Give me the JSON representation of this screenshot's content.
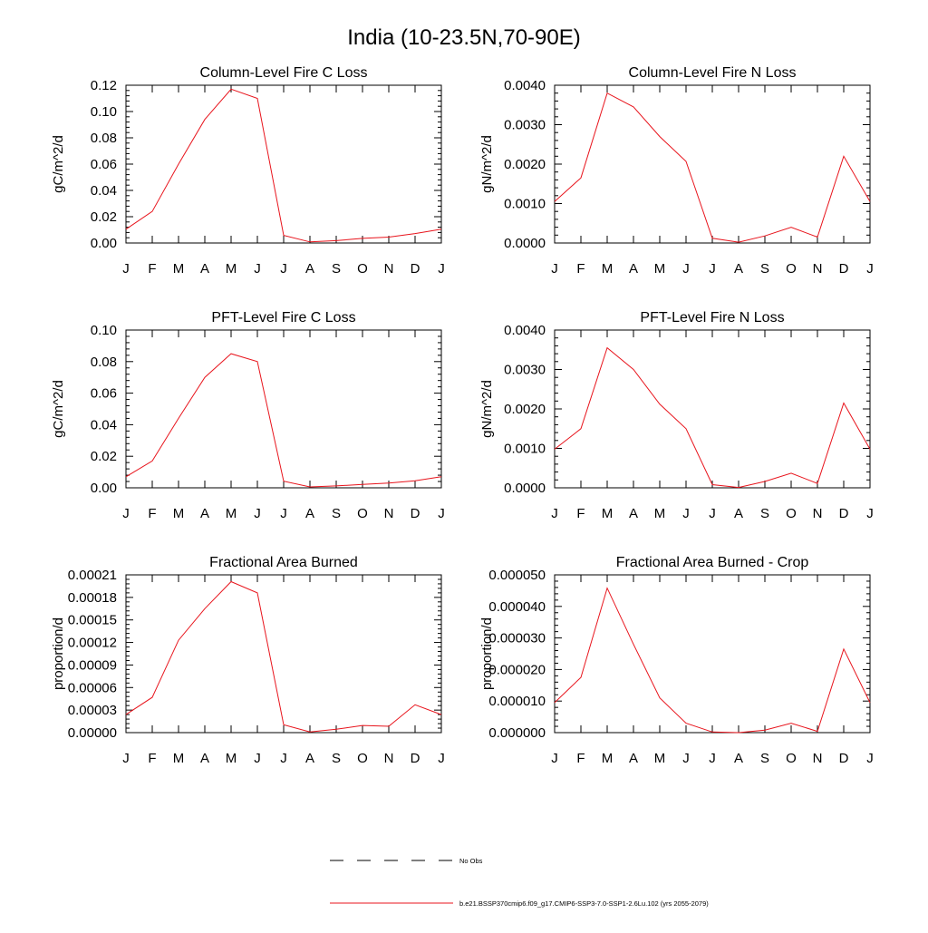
{
  "figure_title": "India (10-23.5N,70-90E)",
  "legend": {
    "entries": [
      {
        "label": "No Obs",
        "style": "dashed",
        "color": "#000000"
      },
      {
        "label": "b.e21.BSSP370cmip6.f09_g17.CMIP6-SSP3-7.0-SSP1-2.6Lu.102 (yrs 2055-2079)",
        "style": "solid",
        "color": "#e8141c"
      }
    ]
  },
  "chart_data": [
    {
      "type": "line",
      "title": "Column-Level Fire C Loss",
      "xlabel": "",
      "ylabel": "gC/m^2/d",
      "x": [
        "J",
        "F",
        "M",
        "A",
        "M",
        "J",
        "J",
        "A",
        "S",
        "O",
        "N",
        "D",
        "J"
      ],
      "ylim": [
        0,
        0.12
      ],
      "yticks": [
        "0.00",
        "0.02",
        "0.04",
        "0.06",
        "0.08",
        "0.10",
        "0.12"
      ],
      "series": [
        {
          "values": [
            0.0105,
            0.024,
            0.06,
            0.094,
            0.117,
            0.11,
            0.0058,
            0.0008,
            0.0018,
            0.0035,
            0.0045,
            0.0072,
            0.0105
          ]
        }
      ]
    },
    {
      "type": "line",
      "title": "Column-Level Fire N Loss",
      "xlabel": "",
      "ylabel": "gN/m^2/d",
      "x": [
        "J",
        "F",
        "M",
        "A",
        "M",
        "J",
        "J",
        "A",
        "S",
        "O",
        "N",
        "D",
        "J"
      ],
      "ylim": [
        0,
        0.004
      ],
      "yticks": [
        "0.0000",
        "0.0010",
        "0.0020",
        "0.0030",
        "0.0040"
      ],
      "series": [
        {
          "values": [
            0.00105,
            0.00165,
            0.0038,
            0.00345,
            0.0027,
            0.00207,
            0.00012,
            2e-05,
            0.00018,
            0.0004,
            0.00015,
            0.0022,
            0.00105
          ]
        }
      ]
    },
    {
      "type": "line",
      "title": "PFT-Level Fire C Loss",
      "xlabel": "",
      "ylabel": "gC/m^2/d",
      "x": [
        "J",
        "F",
        "M",
        "A",
        "M",
        "J",
        "J",
        "A",
        "S",
        "O",
        "N",
        "D",
        "J"
      ],
      "ylim": [
        0,
        0.1
      ],
      "yticks": [
        "0.00",
        "0.02",
        "0.04",
        "0.06",
        "0.08",
        "0.10"
      ],
      "series": [
        {
          "values": [
            0.007,
            0.017,
            0.044,
            0.07,
            0.085,
            0.08,
            0.0042,
            0.0006,
            0.0012,
            0.0022,
            0.003,
            0.0045,
            0.007
          ]
        }
      ]
    },
    {
      "type": "line",
      "title": "PFT-Level Fire N Loss",
      "xlabel": "",
      "ylabel": "gN/m^2/d",
      "x": [
        "J",
        "F",
        "M",
        "A",
        "M",
        "J",
        "J",
        "A",
        "S",
        "O",
        "N",
        "D",
        "J"
      ],
      "ylim": [
        0,
        0.004
      ],
      "yticks": [
        "0.0000",
        "0.0010",
        "0.0020",
        "0.0030",
        "0.0040"
      ],
      "series": [
        {
          "values": [
            0.00098,
            0.0015,
            0.00355,
            0.003,
            0.00212,
            0.0015,
            8e-05,
            1e-05,
            0.00016,
            0.00037,
            0.00011,
            0.00215,
            0.00098
          ]
        }
      ]
    },
    {
      "type": "line",
      "title": "Fractional Area Burned",
      "xlabel": "",
      "ylabel": "proportion/d",
      "x": [
        "J",
        "F",
        "M",
        "A",
        "M",
        "J",
        "J",
        "A",
        "S",
        "O",
        "N",
        "D",
        "J"
      ],
      "ylim": [
        0,
        0.00021
      ],
      "yticks": [
        "0.00000",
        "0.00003",
        "0.00006",
        "0.00009",
        "0.00012",
        "0.00015",
        "0.00018",
        "0.00021"
      ],
      "series": [
        {
          "values": [
            2.4e-05,
            4.7e-05,
            0.000123,
            0.000165,
            0.000201,
            0.000186,
            1.05e-05,
            1e-06,
            4.5e-06,
            9.5e-06,
            8.5e-06,
            3.7e-05,
            2.4e-05
          ]
        }
      ]
    },
    {
      "type": "line",
      "title": "Fractional Area Burned - Crop",
      "xlabel": "",
      "ylabel": "proportion/d",
      "x": [
        "J",
        "F",
        "M",
        "A",
        "M",
        "J",
        "J",
        "A",
        "S",
        "O",
        "N",
        "D",
        "J"
      ],
      "ylim": [
        0,
        5e-05
      ],
      "yticks": [
        "0.000000",
        "0.000010",
        "0.000020",
        "0.000030",
        "0.000040",
        "0.000050"
      ],
      "series": [
        {
          "values": [
            9.5e-06,
            1.75e-05,
            4.58e-05,
            2.8e-05,
            1.1e-05,
            3e-06,
            2e-07,
            0.0,
            8e-07,
            3e-06,
            4e-07,
            2.65e-05,
            9.5e-06
          ]
        }
      ]
    }
  ]
}
